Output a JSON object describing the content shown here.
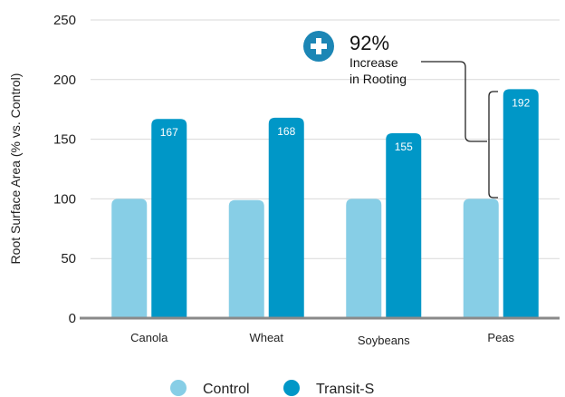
{
  "chart_data": {
    "type": "bar",
    "ylabel": "Root Surface Area (% vs. Control)",
    "xlabel": "",
    "ylim": [
      0,
      250
    ],
    "yticks": [
      0,
      50,
      100,
      150,
      200,
      250
    ],
    "categories": [
      "Canola",
      "Wheat",
      "Soybeans",
      "Peas"
    ],
    "series": [
      {
        "name": "Control",
        "values": [
          100,
          99,
          100,
          100
        ],
        "color": "#87CEE6"
      },
      {
        "name": "Transit-S",
        "values": [
          167,
          168,
          155,
          192
        ],
        "color": "#0097C7"
      }
    ],
    "data_labels": [
      "167",
      "168",
      "155",
      "192"
    ],
    "grid": true,
    "legend_position": "bottom",
    "annotation": {
      "value": "92%",
      "line1": "Increase",
      "line2": "in Rooting",
      "icon": "plus-circle-icon",
      "icon_color": "#1C86B5"
    }
  }
}
